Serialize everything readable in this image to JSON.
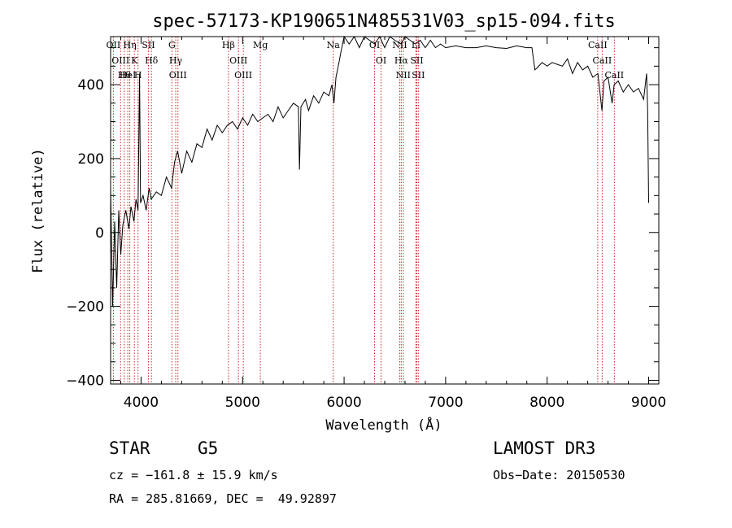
{
  "chart_data": {
    "type": "line",
    "title": "spec-57173-KP190651N485531V03_sp15-094.fits",
    "xlabel": "Wavelength (Å)",
    "ylabel": "Flux (relative)",
    "xlim": [
      3700,
      9100
    ],
    "ylim": [
      -410,
      530
    ],
    "xticks": [
      4000,
      5000,
      6000,
      7000,
      8000,
      9000
    ],
    "xtick_labels": [
      "4000",
      "5000",
      "6000",
      "7000",
      "8000",
      "9000"
    ],
    "yticks": [
      -400,
      -200,
      0,
      200,
      400
    ],
    "ytick_labels": [
      "−400",
      "−200",
      "0",
      "200",
      "400"
    ],
    "series": [
      {
        "name": "spectrum",
        "points": [
          [
            3700,
            120
          ],
          [
            3720,
            -200
          ],
          [
            3740,
            30
          ],
          [
            3760,
            -150
          ],
          [
            3780,
            60
          ],
          [
            3800,
            -60
          ],
          [
            3820,
            20
          ],
          [
            3850,
            60
          ],
          [
            3880,
            10
          ],
          [
            3900,
            70
          ],
          [
            3930,
            30
          ],
          [
            3950,
            90
          ],
          [
            3970,
            60
          ],
          [
            3985,
            430
          ],
          [
            3995,
            80
          ],
          [
            4020,
            100
          ],
          [
            4050,
            60
          ],
          [
            4080,
            120
          ],
          [
            4100,
            90
          ],
          [
            4150,
            110
          ],
          [
            4200,
            100
          ],
          [
            4250,
            150
          ],
          [
            4300,
            120
          ],
          [
            4330,
            190
          ],
          [
            4360,
            220
          ],
          [
            4400,
            160
          ],
          [
            4450,
            220
          ],
          [
            4500,
            190
          ],
          [
            4550,
            240
          ],
          [
            4600,
            230
          ],
          [
            4650,
            280
          ],
          [
            4700,
            250
          ],
          [
            4750,
            290
          ],
          [
            4800,
            270
          ],
          [
            4850,
            290
          ],
          [
            4900,
            300
          ],
          [
            4950,
            280
          ],
          [
            5000,
            310
          ],
          [
            5050,
            290
          ],
          [
            5100,
            320
          ],
          [
            5150,
            300
          ],
          [
            5200,
            310
          ],
          [
            5250,
            320
          ],
          [
            5300,
            300
          ],
          [
            5350,
            340
          ],
          [
            5400,
            310
          ],
          [
            5450,
            330
          ],
          [
            5500,
            350
          ],
          [
            5550,
            340
          ],
          [
            5560,
            170
          ],
          [
            5575,
            340
          ],
          [
            5620,
            360
          ],
          [
            5650,
            330
          ],
          [
            5700,
            370
          ],
          [
            5750,
            350
          ],
          [
            5800,
            380
          ],
          [
            5850,
            370
          ],
          [
            5880,
            400
          ],
          [
            5900,
            350
          ],
          [
            5920,
            420
          ],
          [
            5950,
            460
          ],
          [
            5970,
            490
          ],
          [
            6000,
            530
          ],
          [
            6050,
            510
          ],
          [
            6100,
            530
          ],
          [
            6150,
            500
          ],
          [
            6200,
            530
          ],
          [
            6250,
            520
          ],
          [
            6300,
            510
          ],
          [
            6350,
            530
          ],
          [
            6400,
            500
          ],
          [
            6450,
            530
          ],
          [
            6500,
            520
          ],
          [
            6560,
            510
          ],
          [
            6600,
            530
          ],
          [
            6650,
            520
          ],
          [
            6700,
            510
          ],
          [
            6750,
            520
          ],
          [
            6800,
            500
          ],
          [
            6850,
            520
          ],
          [
            6900,
            500
          ],
          [
            6950,
            510
          ],
          [
            7000,
            500
          ],
          [
            7100,
            505
          ],
          [
            7200,
            500
          ],
          [
            7300,
            500
          ],
          [
            7400,
            505
          ],
          [
            7500,
            500
          ],
          [
            7600,
            498
          ],
          [
            7700,
            505
          ],
          [
            7800,
            500
          ],
          [
            7850,
            500
          ],
          [
            7880,
            440
          ],
          [
            7900,
            445
          ],
          [
            7950,
            460
          ],
          [
            8000,
            450
          ],
          [
            8050,
            460
          ],
          [
            8100,
            455
          ],
          [
            8150,
            450
          ],
          [
            8200,
            470
          ],
          [
            8250,
            430
          ],
          [
            8300,
            460
          ],
          [
            8350,
            440
          ],
          [
            8400,
            450
          ],
          [
            8450,
            420
          ],
          [
            8500,
            430
          ],
          [
            8540,
            330
          ],
          [
            8560,
            410
          ],
          [
            8600,
            420
          ],
          [
            8640,
            350
          ],
          [
            8660,
            400
          ],
          [
            8700,
            410
          ],
          [
            8750,
            380
          ],
          [
            8800,
            400
          ],
          [
            8850,
            380
          ],
          [
            8900,
            390
          ],
          [
            8950,
            360
          ],
          [
            8980,
            430
          ],
          [
            8990,
            330
          ],
          [
            9000,
            80
          ]
        ]
      }
    ],
    "lines": [
      {
        "wave": 3727,
        "label": "OII"
      },
      {
        "wave": 3798,
        "label": "OIII"
      },
      {
        "wave": 3835,
        "label": "Hθ"
      },
      {
        "wave": 3869,
        "label": "HeI"
      },
      {
        "wave": 3889,
        "label": "Hη"
      },
      {
        "wave": 3934,
        "label": "K"
      },
      {
        "wave": 3970,
        "label": "H"
      },
      {
        "wave": 4072,
        "label": "SII"
      },
      {
        "wave": 4102,
        "label": "Hδ"
      },
      {
        "wave": 4304,
        "label": "G"
      },
      {
        "wave": 4341,
        "label": "Hγ"
      },
      {
        "wave": 4363,
        "label": "OIII"
      },
      {
        "wave": 4861,
        "label": "Hβ"
      },
      {
        "wave": 4959,
        "label": "OIII"
      },
      {
        "wave": 5007,
        "label": "OIII"
      },
      {
        "wave": 5175,
        "label": "Mg"
      },
      {
        "wave": 5893,
        "label": "Na"
      },
      {
        "wave": 6300,
        "label": "OI"
      },
      {
        "wave": 6364,
        "label": "OI"
      },
      {
        "wave": 6548,
        "label": "NII"
      },
      {
        "wave": 6563,
        "label": "Hα"
      },
      {
        "wave": 6583,
        "label": "NII"
      },
      {
        "wave": 6707,
        "label": "Li"
      },
      {
        "wave": 6716,
        "label": "SII"
      },
      {
        "wave": 6731,
        "label": "SII"
      },
      {
        "wave": 8498,
        "label": "CaII"
      },
      {
        "wave": 8542,
        "label": "CaII"
      },
      {
        "wave": 8662,
        "label": "CaII"
      }
    ]
  },
  "info": {
    "object_class": "STAR",
    "subclass": "G5",
    "survey": "LAMOST DR3",
    "cz": "cz = −161.8 ± 15.9 km/s",
    "obs_date": "Obs−Date: 20150530",
    "coords": "RA = 285.81669, DEC =  49.92897"
  },
  "colors": {
    "spectrum": "#000000",
    "line_markers": "#cc2222",
    "axes": "#000000"
  }
}
